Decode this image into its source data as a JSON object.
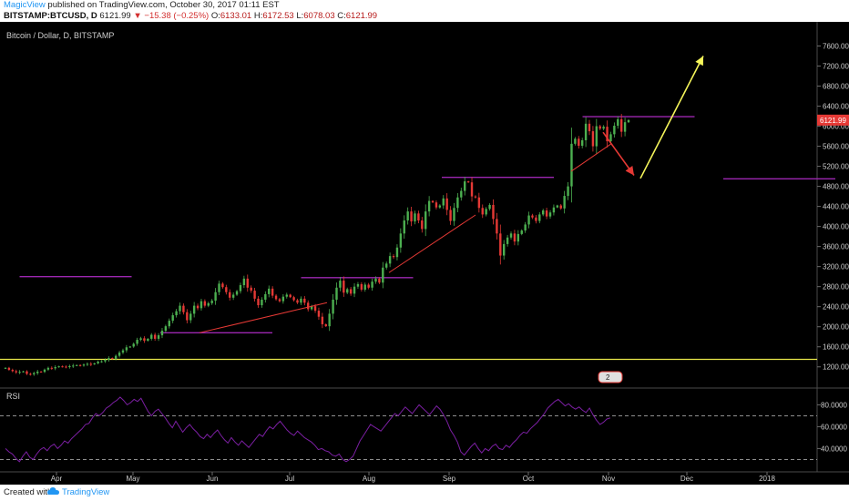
{
  "header": {
    "author": "MagicView",
    "published": "published on TradingView.com, October 30, 2017 01:11 EST",
    "symbol": "BITSTAMP:BTCUSD, D",
    "last": "6121.99",
    "change": "−15.38 (−0.25%)",
    "o_label": "O:",
    "o": "6133.01",
    "h_label": "H:",
    "h": "6172.53",
    "l_label": "L:",
    "l": "6078.03",
    "c_label": "C:",
    "c": "6121.99"
  },
  "footer": {
    "created_with": "Created with",
    "brand": "TradingView"
  },
  "colors": {
    "background": "#000000",
    "candle_up": "#4caf50",
    "candle_down": "#e53935",
    "channel": "#9c27b0",
    "trendline": "#e53935",
    "yellow_line": "#e8e64a",
    "projection_up": "#f5f55a",
    "projection_down": "#e53935",
    "rsi": "#7b1fa2",
    "price_tag": "#e53935"
  },
  "chart_data": [
    {
      "type": "candlestick",
      "title": "Bitcoin / Dollar, D, BITSTAMP",
      "x_ticks": [
        "Apr",
        "May",
        "Jun",
        "Jul",
        "Aug",
        "Sep",
        "Oct",
        "Nov",
        "Dec",
        "2018"
      ],
      "y_ticks": [
        "1200.00",
        "1600.00",
        "2000.00",
        "2400.00",
        "2800.00",
        "3200.00",
        "3600.00",
        "4000.00",
        "4400.00",
        "4800.00",
        "5200.00",
        "5600.00",
        "6000.00",
        "6400.00",
        "6800.00",
        "7200.00",
        "7600.00"
      ],
      "ylim": [
        850,
        7900
      ],
      "grid": false,
      "last_price_tag": "6121.99",
      "event_marker": "2",
      "closes": [
        1180,
        1140,
        1115,
        1090,
        1100,
        1110,
        1060,
        1050,
        1075,
        1105,
        1100,
        1145,
        1180,
        1170,
        1195,
        1210,
        1205,
        1195,
        1215,
        1225,
        1235,
        1225,
        1245,
        1260,
        1250,
        1270,
        1305,
        1310,
        1340,
        1375,
        1360,
        1420,
        1485,
        1530,
        1590,
        1605,
        1660,
        1740,
        1770,
        1720,
        1760,
        1840,
        1760,
        1830,
        1920,
        2010,
        2120,
        2230,
        2310,
        2420,
        2290,
        2130,
        2260,
        2420,
        2370,
        2510,
        2420,
        2470,
        2520,
        2690,
        2860,
        2790,
        2690,
        2580,
        2640,
        2710,
        2830,
        2960,
        2780,
        2720,
        2560,
        2430,
        2540,
        2650,
        2760,
        2620,
        2550,
        2510,
        2600,
        2640,
        2590,
        2530,
        2480,
        2560,
        2480,
        2350,
        2410,
        2320,
        2200,
        2050,
        2010,
        2260,
        2540,
        2780,
        2920,
        2680,
        2750,
        2660,
        2800,
        2850,
        2740,
        2840,
        2780,
        2900,
        2960,
        2880,
        3180,
        3260,
        3410,
        3390,
        3580,
        3860,
        4120,
        4300,
        4100,
        4260,
        4120,
        3950,
        4300,
        4510,
        4480,
        4380,
        4420,
        4560,
        4330,
        4110,
        4370,
        4580,
        4710,
        4900,
        4880,
        4600,
        4580,
        4370,
        4240,
        4350,
        4430,
        4150,
        3860,
        3420,
        3650,
        3780,
        3860,
        3700,
        3850,
        3920,
        4040,
        4220,
        4180,
        4110,
        4240,
        4320,
        4200,
        4280,
        4380,
        4420,
        4360,
        4610,
        4800,
        5650,
        5750,
        5610,
        5720,
        6050,
        5900,
        5600,
        6000,
        5950,
        5990,
        5700,
        5840,
        6010,
        6140,
        5890,
        6080,
        6122
      ],
      "channels": [
        {
          "from": 1,
          "to": 3,
          "price": 3000
        },
        {
          "from": 4,
          "to": 6,
          "price": 1880
        },
        {
          "from": 7,
          "to": 9,
          "price": 2980
        },
        {
          "from": 10,
          "to": 12,
          "price": 4980
        },
        {
          "from": 13,
          "to": 15,
          "price": 6190
        },
        {
          "from": 16,
          "to": 18,
          "price": 4950
        }
      ],
      "horizontal_line": 1350
    },
    {
      "type": "line",
      "title": "RSI",
      "y_ticks": [
        "40.0000",
        "60.0000",
        "80.0000"
      ],
      "ylim": [
        22,
        92
      ],
      "levels": [
        70,
        30
      ],
      "values": [
        40,
        37,
        35,
        31,
        28,
        33,
        37,
        32,
        30,
        35,
        39,
        41,
        38,
        42,
        44,
        40,
        43,
        47,
        45,
        49,
        52,
        55,
        58,
        62,
        63,
        68,
        72,
        70,
        73,
        77,
        79,
        82,
        84,
        87,
        84,
        80,
        82,
        85,
        83,
        86,
        80,
        74,
        70,
        74,
        76,
        72,
        68,
        63,
        59,
        65,
        60,
        55,
        59,
        62,
        58,
        55,
        51,
        49,
        53,
        50,
        54,
        57,
        52,
        48,
        45,
        50,
        46,
        43,
        47,
        44,
        41,
        45,
        49,
        53,
        51,
        56,
        60,
        58,
        62,
        65,
        61,
        57,
        54,
        52,
        56,
        53,
        50,
        48,
        46,
        43,
        39,
        40,
        38,
        37,
        34,
        33,
        35,
        30,
        28,
        30,
        33,
        40,
        47,
        52,
        57,
        62,
        60,
        58,
        56,
        60,
        64,
        68,
        72,
        70,
        74,
        78,
        75,
        72,
        76,
        80,
        77,
        74,
        71,
        75,
        79,
        76,
        71,
        65,
        57,
        52,
        46,
        37,
        34,
        38,
        42,
        45,
        40,
        36,
        40,
        38,
        42,
        44,
        40,
        39,
        43,
        41,
        45,
        48,
        52,
        55,
        54,
        58,
        61,
        64,
        68,
        72,
        77,
        80,
        83,
        85,
        82,
        79,
        81,
        78,
        76,
        78,
        75,
        73,
        77,
        71,
        66,
        62,
        64,
        67,
        68
      ]
    }
  ]
}
